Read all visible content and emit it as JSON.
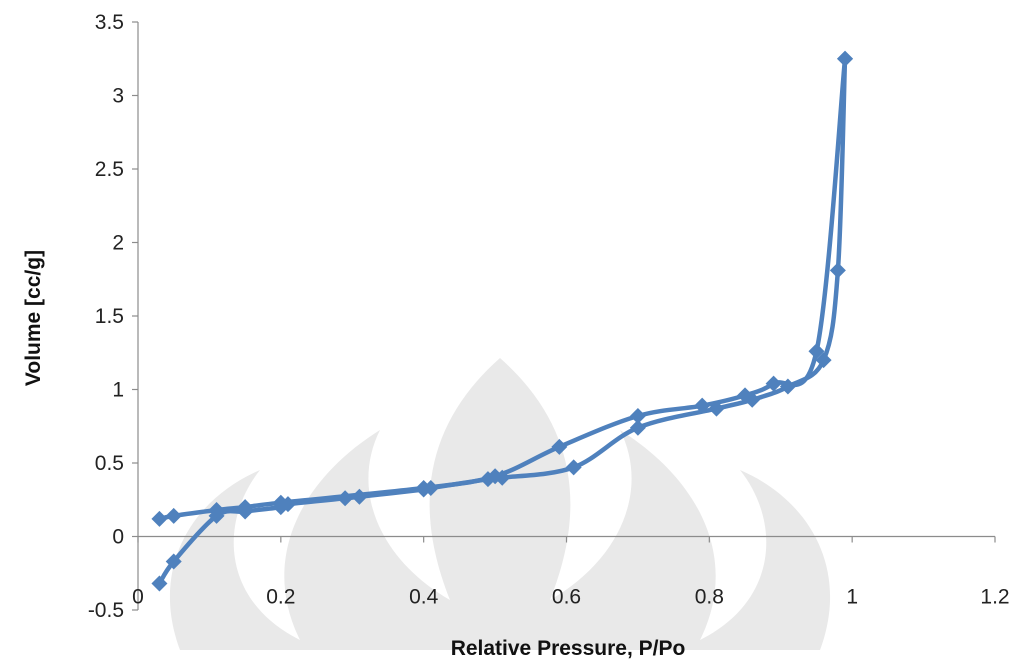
{
  "chart_data": {
    "type": "scatter",
    "title": "",
    "xlabel": "Relative Pressure, P/Po",
    "ylabel": "Volume [cc/g]",
    "xlim": [
      0,
      1.2
    ],
    "ylim": [
      -0.5,
      3.5
    ],
    "x_ticks": [
      "0",
      "0.2",
      "0.4",
      "0.6",
      "0.8",
      "1",
      "1.2"
    ],
    "y_ticks": [
      "-0.5",
      "0",
      "0.5",
      "1",
      "1.5",
      "2",
      "2.5",
      "3",
      "3.5"
    ],
    "grid": false,
    "legend": "none",
    "colors": {
      "series": "#4f81bd",
      "marker": "#4f81bd",
      "axis": "#8c8c8c"
    },
    "series": [
      {
        "points": [
          [
            0.03,
            -0.32
          ],
          [
            0.05,
            -0.17
          ],
          [
            0.11,
            0.14
          ],
          [
            0.15,
            0.17
          ],
          [
            0.2,
            0.2
          ],
          [
            0.21,
            0.22
          ],
          [
            0.29,
            0.26
          ],
          [
            0.31,
            0.27
          ],
          [
            0.4,
            0.32
          ],
          [
            0.41,
            0.33
          ],
          [
            0.49,
            0.39
          ],
          [
            0.51,
            0.4
          ],
          [
            0.61,
            0.47
          ],
          [
            0.7,
            0.74
          ],
          [
            0.81,
            0.87
          ],
          [
            0.86,
            0.93
          ],
          [
            0.91,
            1.02
          ],
          [
            0.96,
            1.2
          ],
          [
            0.98,
            1.81
          ],
          [
            0.99,
            3.25
          ]
        ]
      },
      {
        "points": [
          [
            0.99,
            3.25
          ],
          [
            0.95,
            1.26
          ],
          [
            0.89,
            1.04
          ],
          [
            0.85,
            0.96
          ],
          [
            0.79,
            0.89
          ],
          [
            0.7,
            0.82
          ],
          [
            0.59,
            0.61
          ],
          [
            0.5,
            0.41
          ],
          [
            0.4,
            0.33
          ],
          [
            0.2,
            0.23
          ],
          [
            0.15,
            0.2
          ],
          [
            0.11,
            0.18
          ],
          [
            0.05,
            0.14
          ],
          [
            0.03,
            0.12
          ]
        ]
      }
    ]
  }
}
